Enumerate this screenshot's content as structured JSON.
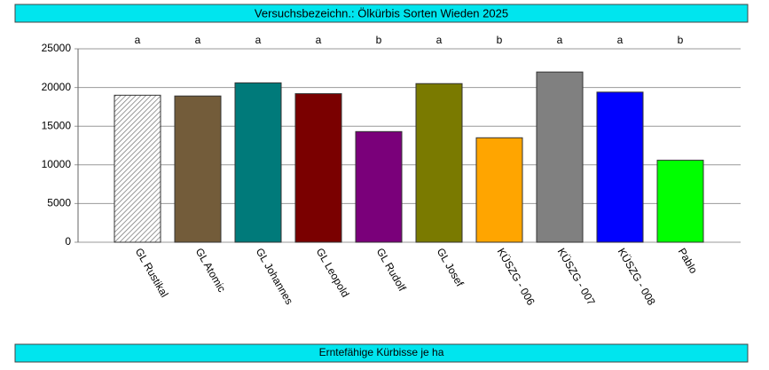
{
  "chart_data": {
    "type": "bar",
    "title": "Versuchsbezeichn.: Ölkürbis Sorten Wieden 2025",
    "xlabel": "Erntefähige Kürbisse je ha",
    "categories": [
      "GL Rustikal",
      "GL Atomic",
      "GL Johannes",
      "GL Leopold",
      "GL Rudolf",
      "GL Josef",
      "KÜSZG - 006",
      "KÜSZG - 007",
      "KÜSZG - 008",
      "Pablo"
    ],
    "values": [
      19000,
      18900,
      20600,
      19200,
      14300,
      20500,
      13500,
      22000,
      19400,
      10600
    ],
    "annotations": [
      "a",
      "a",
      "a",
      "a",
      "b",
      "a",
      "b",
      "a",
      "a",
      "b"
    ],
    "colors": [
      "#ffffff",
      "#735c3a",
      "#007a7a",
      "#7a0000",
      "#7a007a",
      "#7a7a00",
      "#ffa500",
      "#808080",
      "#0000ff",
      "#00ff00"
    ],
    "hatch": [
      true,
      false,
      false,
      false,
      false,
      false,
      false,
      false,
      false,
      false
    ],
    "ylim": [
      0,
      25000
    ],
    "yticks": [
      0,
      5000,
      10000,
      15000,
      20000,
      25000
    ],
    "grid": true
  }
}
